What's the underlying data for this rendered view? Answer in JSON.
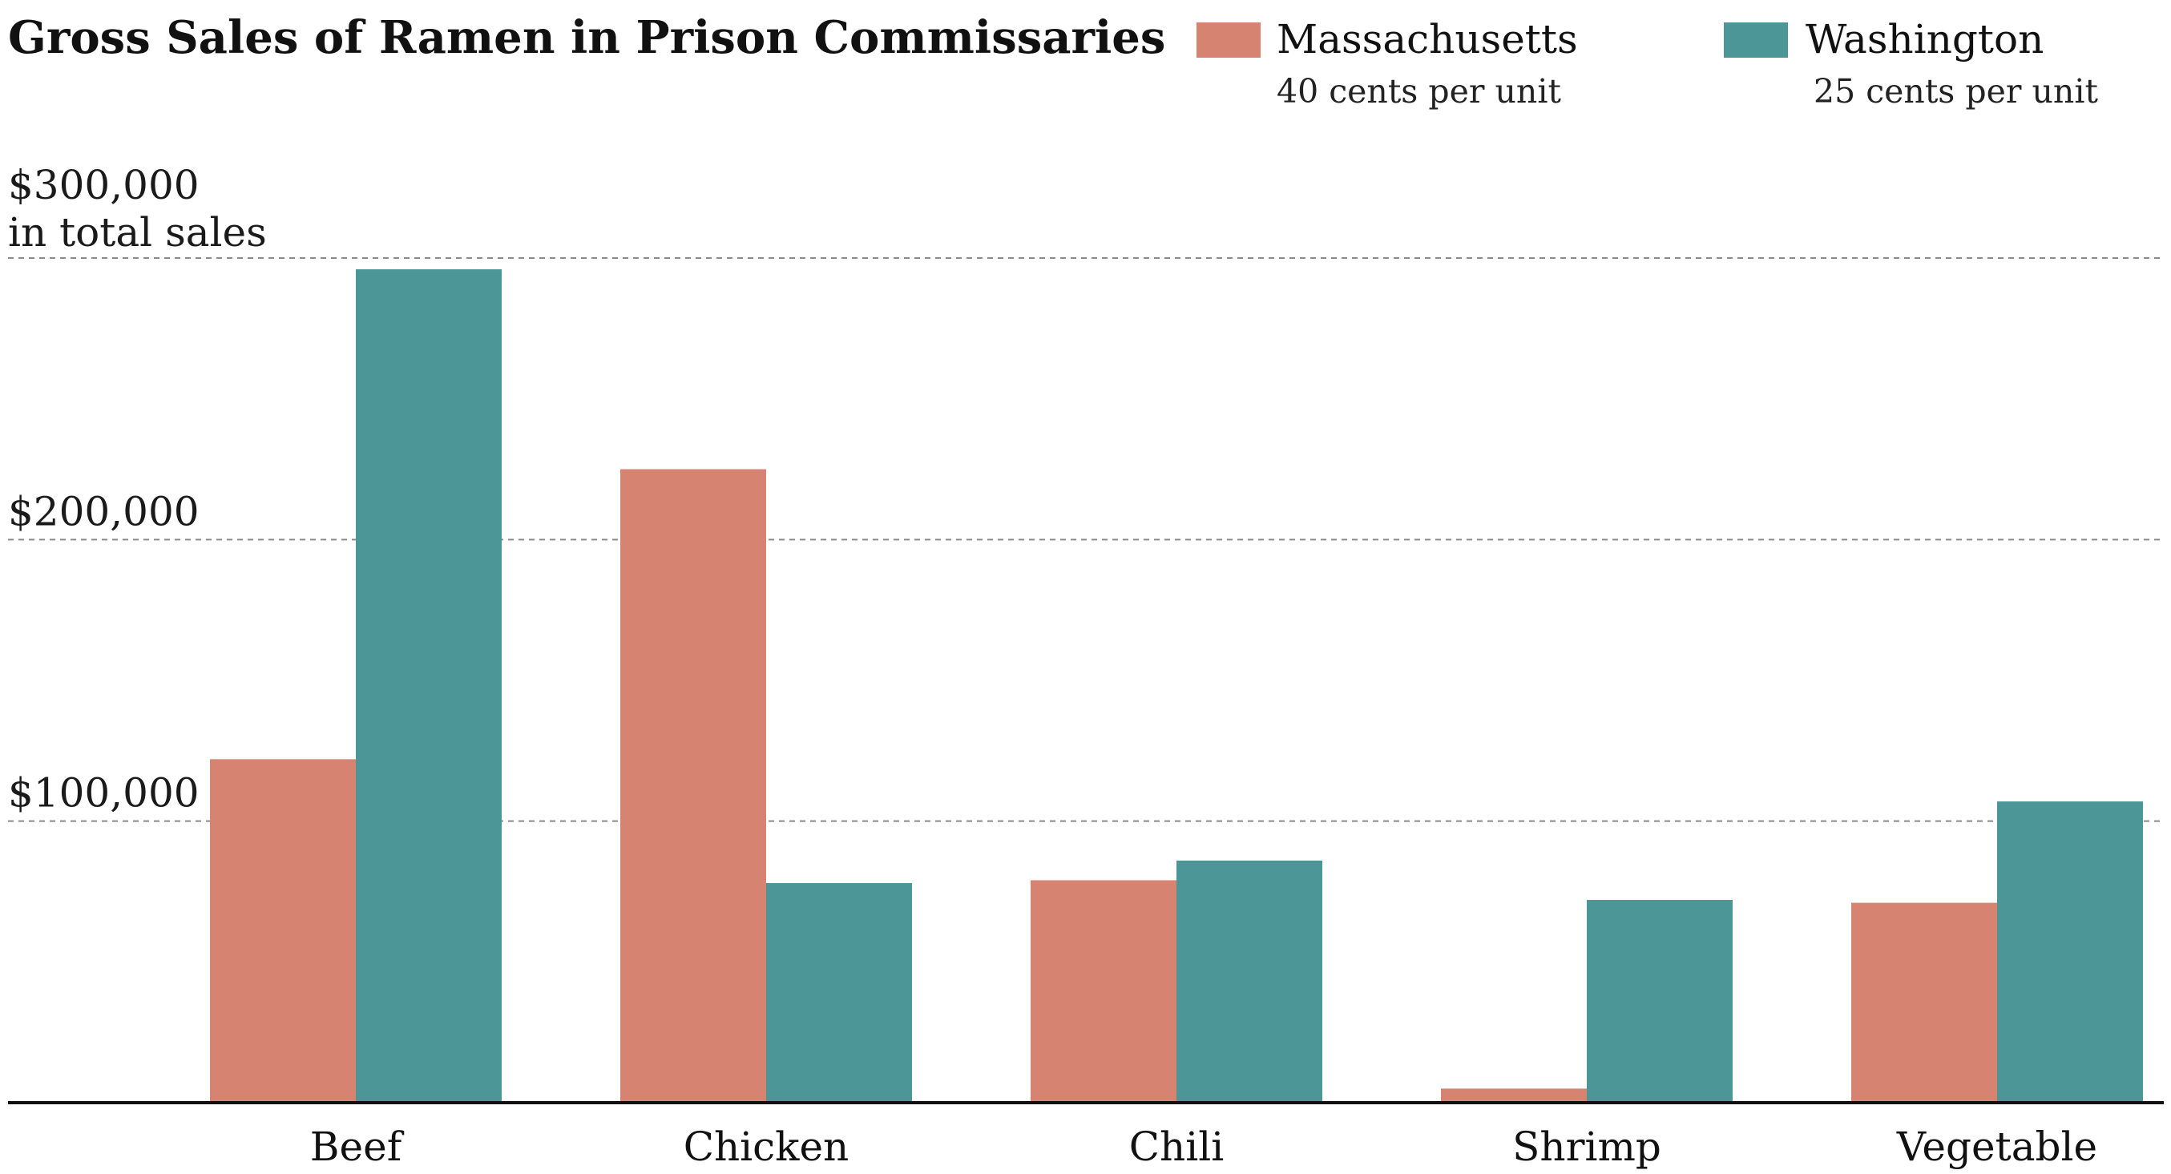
{
  "chart_data": {
    "type": "bar",
    "title": "Gross Sales of Ramen in Prison Commissaries",
    "categories": [
      "Beef",
      "Chicken",
      "Chili",
      "Shrimp",
      "Vegetable"
    ],
    "series": [
      {
        "name": "Massachusetts",
        "subtitle": "40 cents per unit",
        "color": "#d68372",
        "values": [
          122000,
          225000,
          79000,
          5000,
          71000
        ]
      },
      {
        "name": "Washington",
        "subtitle": "25 cents per unit",
        "color": "#4c9698",
        "values": [
          296000,
          78000,
          86000,
          72000,
          107000
        ]
      }
    ],
    "yticks": [
      {
        "value": 100000,
        "label": "$100,000"
      },
      {
        "value": 200000,
        "label": "$200,000"
      },
      {
        "value": 300000,
        "label": "$300,000",
        "label2": "in total sales"
      }
    ],
    "ylim": [
      0,
      300000
    ],
    "xlabel": "",
    "ylabel": "",
    "grid": true,
    "legend_position": "top-right"
  }
}
